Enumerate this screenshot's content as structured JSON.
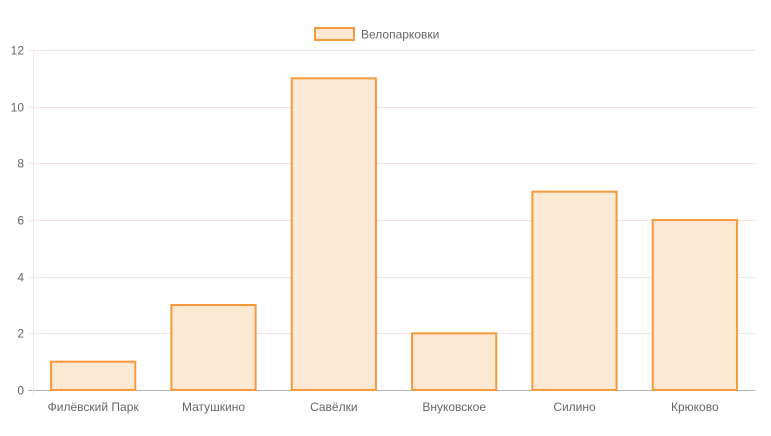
{
  "chart_data": {
    "type": "bar",
    "categories": [
      "Филёвский Парк",
      "Матушкино",
      "Савёлки",
      "Внуковское",
      "Силино",
      "Крюково"
    ],
    "series": [
      {
        "name": "Велопарковки",
        "values": [
          1,
          3,
          11,
          2,
          7,
          6
        ]
      }
    ],
    "ylim": [
      0,
      12
    ],
    "ytick_step": 2,
    "yticks": [
      "0",
      "2",
      "4",
      "6",
      "8",
      "10",
      "12"
    ],
    "grid": true,
    "legend_position": "top-center",
    "colors": {
      "bar_fill": "#fde8d4",
      "bar_stroke": "#f5993a",
      "grid": "#f5e1e6",
      "axis": "#b3b3b3",
      "text": "#666666"
    }
  }
}
